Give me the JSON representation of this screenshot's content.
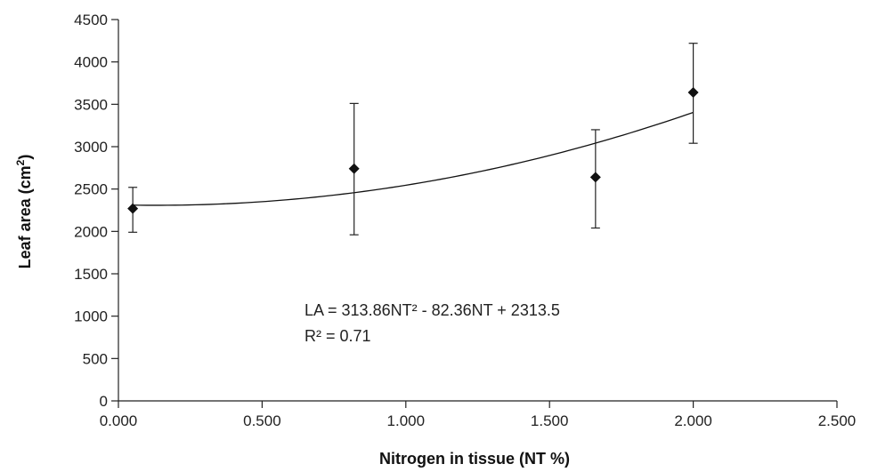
{
  "chart_data": {
    "type": "scatter",
    "title": "",
    "xlabel": "Nitrogen in tissue (NT %)",
    "ylabel_main": "Leaf area (cm",
    "ylabel_sup": "2",
    "ylabel_close": ")",
    "xlim": [
      0,
      2.5
    ],
    "ylim": [
      0,
      4500
    ],
    "x_ticks": [
      {
        "value": 0,
        "label": "0.000"
      },
      {
        "value": 0.5,
        "label": "0.500"
      },
      {
        "value": 1.0,
        "label": "1.000"
      },
      {
        "value": 1.5,
        "label": "1.500"
      },
      {
        "value": 2.0,
        "label": "2.000"
      },
      {
        "value": 2.5,
        "label": "2.500"
      }
    ],
    "y_ticks": [
      {
        "value": 0,
        "label": "0"
      },
      {
        "value": 500,
        "label": "500"
      },
      {
        "value": 1000,
        "label": "1000"
      },
      {
        "value": 1500,
        "label": "1500"
      },
      {
        "value": 2000,
        "label": "2000"
      },
      {
        "value": 2500,
        "label": "2500"
      },
      {
        "value": 3000,
        "label": "3000"
      },
      {
        "value": 3500,
        "label": "3500"
      },
      {
        "value": 4000,
        "label": "4000"
      },
      {
        "value": 4500,
        "label": "4500"
      }
    ],
    "grid": false,
    "points": [
      {
        "x": 0.05,
        "y": 2270,
        "y_low": 1990,
        "y_high": 2520
      },
      {
        "x": 0.82,
        "y": 2740,
        "y_low": 1960,
        "y_high": 3510
      },
      {
        "x": 1.66,
        "y": 2640,
        "y_low": 2040,
        "y_high": 3200
      },
      {
        "x": 2.0,
        "y": 3640,
        "y_low": 3040,
        "y_high": 4220
      }
    ],
    "trendline": {
      "type": "polynomial",
      "a": 313.86,
      "b": -82.36,
      "c": 2313.5,
      "x_range": [
        0.05,
        2.0
      ]
    },
    "annotations": [
      "LA = 313.86NT² - 82.36NT + 2313.5",
      "R² = 0.71"
    ],
    "colors": {
      "marker": "#111111",
      "line": "#111111",
      "axis": "#222222"
    }
  }
}
